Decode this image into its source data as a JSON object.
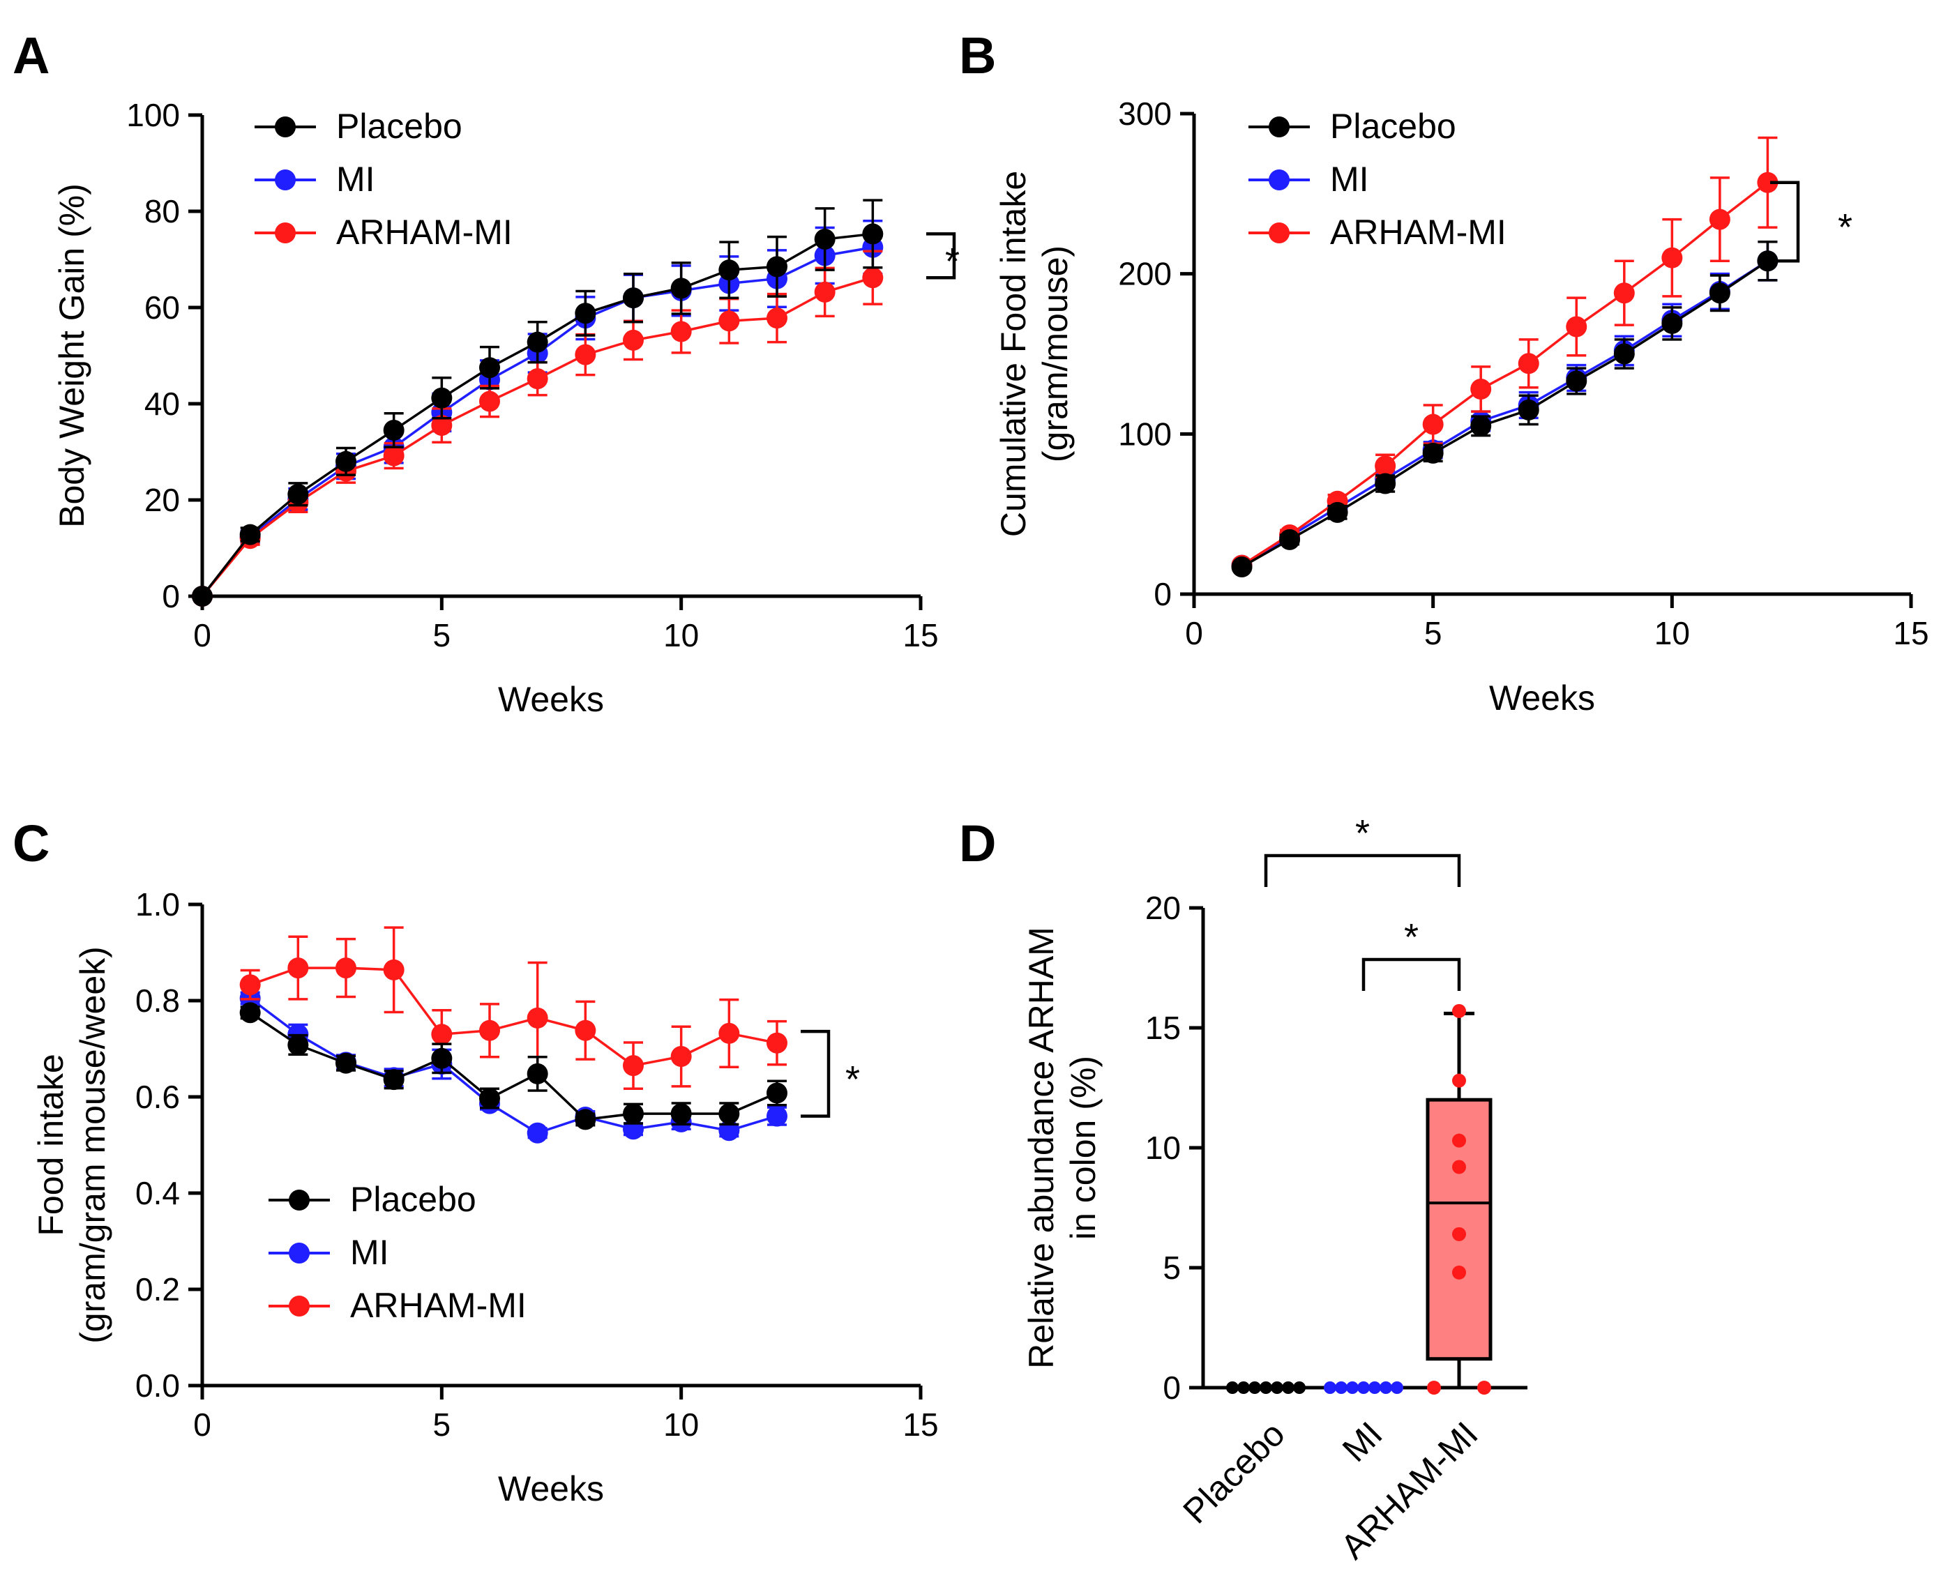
{
  "colors": {
    "Placebo": "#000000",
    "MI": "#1f1fff",
    "ARHAM-MI": "#ff1a1a",
    "box_fill": "#ff8080"
  },
  "chart_data": [
    {
      "panel": "A",
      "type": "line",
      "xlabel": "Weeks",
      "ylabel": "Body Weight Gain (%)",
      "xlim": [
        0,
        15
      ],
      "ylim": [
        0,
        100
      ],
      "xticks": [
        0,
        5,
        10,
        15
      ],
      "yticks": [
        0,
        20,
        40,
        60,
        80,
        100
      ],
      "legend_position": "top-left",
      "significance": "*",
      "series": [
        {
          "name": "Placebo",
          "x": [
            0,
            1,
            2,
            3,
            4,
            5,
            6,
            7,
            8,
            9,
            10,
            11,
            12,
            13,
            14
          ],
          "y": [
            0,
            12.8,
            21.2,
            28,
            34.5,
            41.2,
            47.5,
            52.8,
            58.8,
            62,
            64,
            67.8,
            68.5,
            74.2,
            75.3
          ],
          "err": [
            0,
            1.4,
            2.3,
            2.8,
            3.5,
            4.2,
            4.3,
            4.2,
            4.6,
            5.0,
            5.3,
            5.8,
            6.2,
            6.4,
            7.0
          ]
        },
        {
          "name": "MI",
          "x": [
            0,
            1,
            2,
            3,
            4,
            5,
            6,
            7,
            8,
            9,
            10,
            11,
            12,
            13,
            14
          ],
          "y": [
            0,
            12.3,
            20.2,
            27,
            31,
            38.2,
            45,
            50.5,
            57.8,
            62,
            63.5,
            65,
            66,
            70.8,
            72.5
          ],
          "err": [
            0,
            1.3,
            2.2,
            2.6,
            3.3,
            3.9,
            4.0,
            4.0,
            4.4,
            4.8,
            5.2,
            5.6,
            5.9,
            5.8,
            5.5
          ]
        },
        {
          "name": "ARHAM-MI",
          "x": [
            0,
            1,
            2,
            3,
            4,
            5,
            6,
            7,
            8,
            9,
            10,
            11,
            12,
            13,
            14
          ],
          "y": [
            0,
            12,
            19.5,
            26,
            29.2,
            35.5,
            40.5,
            45.2,
            50.2,
            53.2,
            55,
            57.2,
            57.8,
            63.2,
            66.2
          ],
          "err": [
            0,
            1.3,
            2.0,
            2.4,
            2.6,
            3.5,
            3.2,
            3.4,
            4.2,
            4.0,
            4.4,
            4.6,
            5.0,
            5.0,
            5.5
          ]
        }
      ]
    },
    {
      "panel": "B",
      "type": "line",
      "xlabel": "Weeks",
      "ylabel_lines": [
        "Cumulative Food intake",
        "(gram/mouse)"
      ],
      "xlim": [
        0,
        15
      ],
      "ylim": [
        0,
        300
      ],
      "xticks": [
        0,
        5,
        10,
        15
      ],
      "yticks": [
        0,
        100,
        200,
        300
      ],
      "legend_position": "top-left",
      "significance": "*",
      "series": [
        {
          "name": "Placebo",
          "x": [
            1,
            2,
            3,
            4,
            5,
            6,
            7,
            8,
            9,
            10,
            11,
            12
          ],
          "y": [
            17,
            34,
            51,
            69,
            88,
            105,
            115,
            133,
            150,
            169,
            188,
            208
          ],
          "err": [
            2,
            3,
            4,
            5,
            5,
            6,
            9,
            8,
            9,
            10,
            11,
            12
          ]
        },
        {
          "name": "MI",
          "x": [
            1,
            2,
            3,
            4,
            5,
            6,
            7,
            8,
            9,
            10,
            11,
            12
          ],
          "y": [
            18,
            36,
            54,
            72,
            90,
            108,
            118,
            135,
            152,
            171,
            189,
            208
          ],
          "err": [
            2,
            3,
            4,
            5,
            5,
            6,
            8,
            8,
            9,
            10,
            11,
            12
          ]
        },
        {
          "name": "ARHAM-MI",
          "x": [
            1,
            2,
            3,
            4,
            5,
            6,
            7,
            8,
            9,
            10,
            11,
            12
          ],
          "y": [
            18,
            37,
            58,
            80,
            106,
            128,
            144,
            167,
            188,
            210,
            234,
            257
          ],
          "err": [
            2,
            3,
            4,
            7,
            12,
            14,
            15,
            18,
            20,
            24,
            26,
            28
          ]
        }
      ]
    },
    {
      "panel": "C",
      "type": "line",
      "xlabel": "Weeks",
      "ylabel_lines": [
        "Food intake",
        "(gram/gram mouse/week)"
      ],
      "xlim": [
        0,
        15
      ],
      "ylim": [
        0,
        1.0
      ],
      "xticks": [
        0,
        5,
        10,
        15
      ],
      "yticks": [
        0.0,
        0.2,
        0.4,
        0.6,
        0.8,
        1.0
      ],
      "ytick_labels": [
        "0.0",
        "0.2",
        "0.4",
        "0.6",
        "0.8",
        "1.0"
      ],
      "legend_position": "bottom-left",
      "significance": "*",
      "series": [
        {
          "name": "Placebo",
          "x": [
            1,
            2,
            3,
            4,
            5,
            6,
            7,
            8,
            9,
            10,
            11,
            12
          ],
          "y": [
            0.775,
            0.708,
            0.67,
            0.636,
            0.68,
            0.597,
            0.648,
            0.553,
            0.565,
            0.565,
            0.565,
            0.608
          ],
          "err": [
            0.012,
            0.02,
            0.015,
            0.018,
            0.03,
            0.02,
            0.035,
            0.012,
            0.02,
            0.022,
            0.022,
            0.025
          ]
        },
        {
          "name": "MI",
          "x": [
            1,
            2,
            3,
            4,
            5,
            6,
            7,
            8,
            9,
            10,
            11,
            12
          ],
          "y": [
            0.805,
            0.73,
            0.672,
            0.64,
            0.668,
            0.586,
            0.525,
            0.558,
            0.533,
            0.548,
            0.53,
            0.56
          ],
          "err": [
            0.012,
            0.02,
            0.015,
            0.018,
            0.03,
            0.012,
            0.01,
            0.012,
            0.012,
            0.015,
            0.012,
            0.018
          ]
        },
        {
          "name": "ARHAM-MI",
          "x": [
            1,
            2,
            3,
            4,
            5,
            6,
            7,
            8,
            9,
            10,
            11,
            12
          ],
          "y": [
            0.833,
            0.868,
            0.868,
            0.864,
            0.73,
            0.738,
            0.764,
            0.738,
            0.665,
            0.684,
            0.732,
            0.712
          ],
          "err": [
            0.03,
            0.065,
            0.06,
            0.088,
            0.05,
            0.055,
            0.115,
            0.06,
            0.048,
            0.062,
            0.07,
            0.045
          ]
        }
      ]
    },
    {
      "panel": "D",
      "type": "box",
      "ylabel_lines": [
        "Relative abundance ARHAM",
        "in colon (%)"
      ],
      "ylim": [
        0,
        20
      ],
      "yticks": [
        0,
        5,
        10,
        15,
        20
      ],
      "categories": [
        "Placebo",
        "MI",
        "ARHAM-MI"
      ],
      "points": [
        [
          0,
          0,
          0,
          0,
          0,
          0,
          0
        ],
        [
          0,
          0,
          0,
          0,
          0,
          0,
          0
        ],
        [
          0,
          0,
          4.8,
          6.4,
          9.2,
          10.3,
          12.8,
          15.7
        ]
      ],
      "box": [
        {
          "min": 0,
          "q1": 0,
          "median": 0,
          "q3": 0,
          "max": 0
        },
        {
          "min": 0,
          "q1": 0,
          "median": 0,
          "q3": 0,
          "max": 0
        },
        {
          "min": 0,
          "q1": 1.2,
          "median": 7.7,
          "q3": 12.0,
          "max": 15.6
        }
      ],
      "comparisons": [
        {
          "from": "Placebo",
          "to": "ARHAM-MI",
          "label": "*"
        },
        {
          "from": "MI",
          "to": "ARHAM-MI",
          "label": "*"
        }
      ]
    }
  ]
}
